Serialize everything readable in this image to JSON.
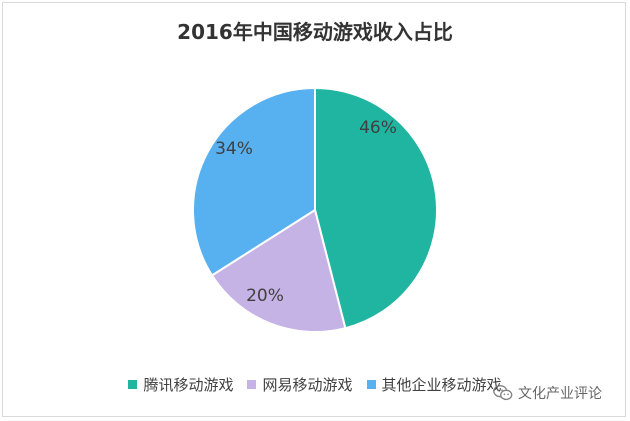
{
  "chart_data": {
    "type": "pie",
    "title": "2016年中国移动游戏收入占比",
    "legend_position": "bottom",
    "slices": [
      {
        "name": "腾讯移动游戏",
        "value": 46,
        "label": "46%",
        "color": "#1FB5A0"
      },
      {
        "name": "网易移动游戏",
        "value": 20,
        "label": "20%",
        "color": "#C5B3E6"
      },
      {
        "name": "其他企业移动游戏",
        "value": 34,
        "label": "34%",
        "color": "#57B0EF"
      }
    ]
  },
  "watermark": {
    "text": "文化产业评论",
    "icon": "wechat-icon"
  }
}
